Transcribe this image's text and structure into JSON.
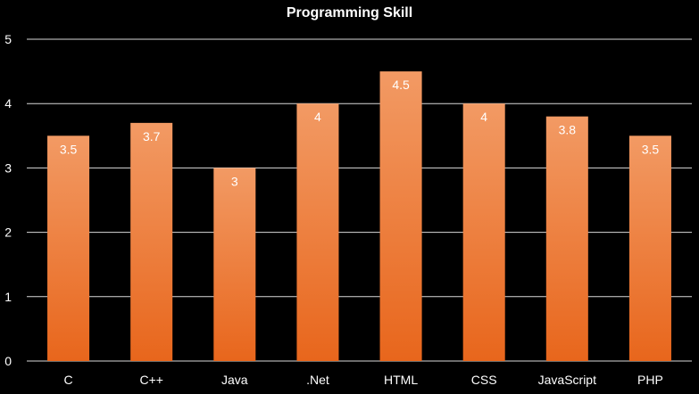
{
  "chart_data": {
    "type": "bar",
    "title": "Programming Skill",
    "xlabel": "",
    "ylabel": "",
    "categories": [
      "C",
      "C++",
      "Java",
      ".Net",
      "HTML",
      "CSS",
      "JavaScript",
      "PHP"
    ],
    "values": [
      3.5,
      3.7,
      3,
      4,
      4.5,
      4,
      3.8,
      3.5
    ],
    "data_labels": [
      "3.5",
      "3.7",
      "3",
      "4",
      "4.5",
      "4",
      "3.8",
      "3.5"
    ],
    "ylim": [
      0,
      5
    ],
    "yticks": [
      "0",
      "1",
      "2",
      "3",
      "4",
      "5"
    ],
    "grid": true,
    "legend": "none",
    "colors": {
      "background": "#000000",
      "bar_top": "#f29a64",
      "bar_bottom": "#e8661c",
      "grid": "#d9d9d9",
      "text": "#ffffff"
    }
  }
}
